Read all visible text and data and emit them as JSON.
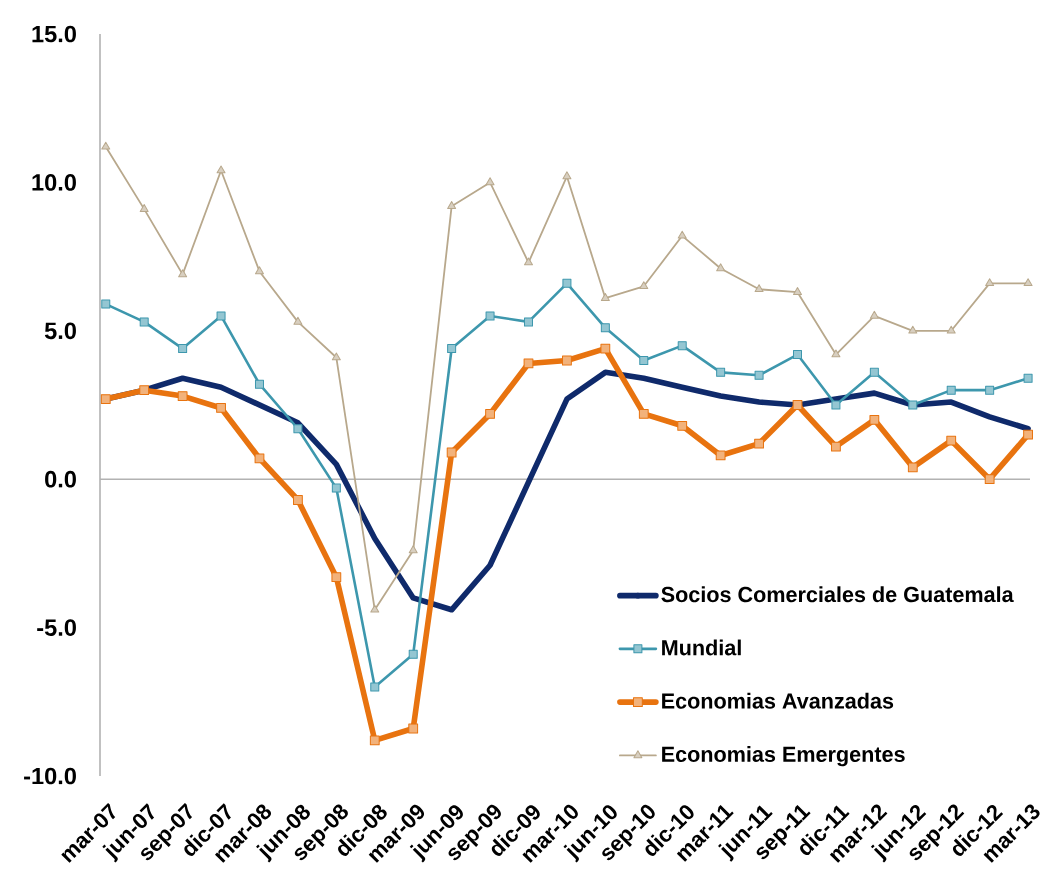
{
  "chart_data": {
    "type": "line",
    "categories": [
      "mar-07",
      "jun-07",
      "sep-07",
      "dic-07",
      "mar-08",
      "jun-08",
      "sep-08",
      "dic-08",
      "mar-09",
      "jun-09",
      "sep-09",
      "dic-09",
      "mar-10",
      "jun-10",
      "sep-10",
      "dic-10",
      "mar-11",
      "jun-11",
      "sep-11",
      "dic-11",
      "mar-12",
      "jun-12",
      "sep-12",
      "dic-12",
      "mar-13"
    ],
    "series": [
      {
        "name": "Socios Comerciales de Guatemala",
        "color": "#0f2a6b",
        "marker": "none",
        "values": [
          2.7,
          3.0,
          3.4,
          3.1,
          2.5,
          1.9,
          0.5,
          -2.0,
          -4.0,
          -4.4,
          -2.9,
          -0.1,
          2.7,
          3.6,
          3.4,
          3.1,
          2.8,
          2.6,
          2.5,
          2.7,
          2.9,
          2.5,
          2.6,
          2.1,
          1.7
        ]
      },
      {
        "name": "Mundial",
        "color": "#3d97ad",
        "marker": "square",
        "values": [
          5.9,
          5.3,
          4.4,
          5.5,
          3.2,
          1.7,
          -0.3,
          -7.0,
          -5.9,
          4.4,
          5.5,
          5.3,
          6.6,
          5.1,
          4.0,
          4.5,
          3.6,
          3.5,
          4.2,
          2.5,
          3.6,
          2.5,
          3.0,
          3.0,
          3.4
        ]
      },
      {
        "name": "Economias Avanzadas",
        "color": "#e8730f",
        "marker": "square",
        "values": [
          2.7,
          3.0,
          2.8,
          2.4,
          0.7,
          -0.7,
          -3.3,
          -8.8,
          -8.4,
          0.9,
          2.2,
          3.9,
          4.0,
          4.4,
          2.2,
          1.8,
          0.8,
          1.2,
          2.5,
          1.1,
          2.0,
          0.4,
          1.3,
          0.0,
          1.5
        ]
      },
      {
        "name": "Economias Emergentes",
        "color": "#b8a88c",
        "marker": "triangle",
        "values": [
          11.2,
          9.1,
          6.9,
          10.4,
          7.0,
          5.3,
          4.1,
          -4.4,
          -2.4,
          9.2,
          10.0,
          7.3,
          10.2,
          6.1,
          6.5,
          8.2,
          7.1,
          6.4,
          6.3,
          4.2,
          5.5,
          5.0,
          5.0,
          6.6,
          6.6
        ]
      }
    ],
    "ylim": [
      -10,
      15
    ],
    "yticks": [
      {
        "value": -10,
        "label": "-10.0"
      },
      {
        "value": -5,
        "label": "-5.0"
      },
      {
        "value": 0,
        "label": "0.0"
      },
      {
        "value": 5,
        "label": "5.0"
      },
      {
        "value": 10,
        "label": "10.0"
      },
      {
        "value": 15,
        "label": "15.0"
      }
    ],
    "legend": "bottom right"
  }
}
